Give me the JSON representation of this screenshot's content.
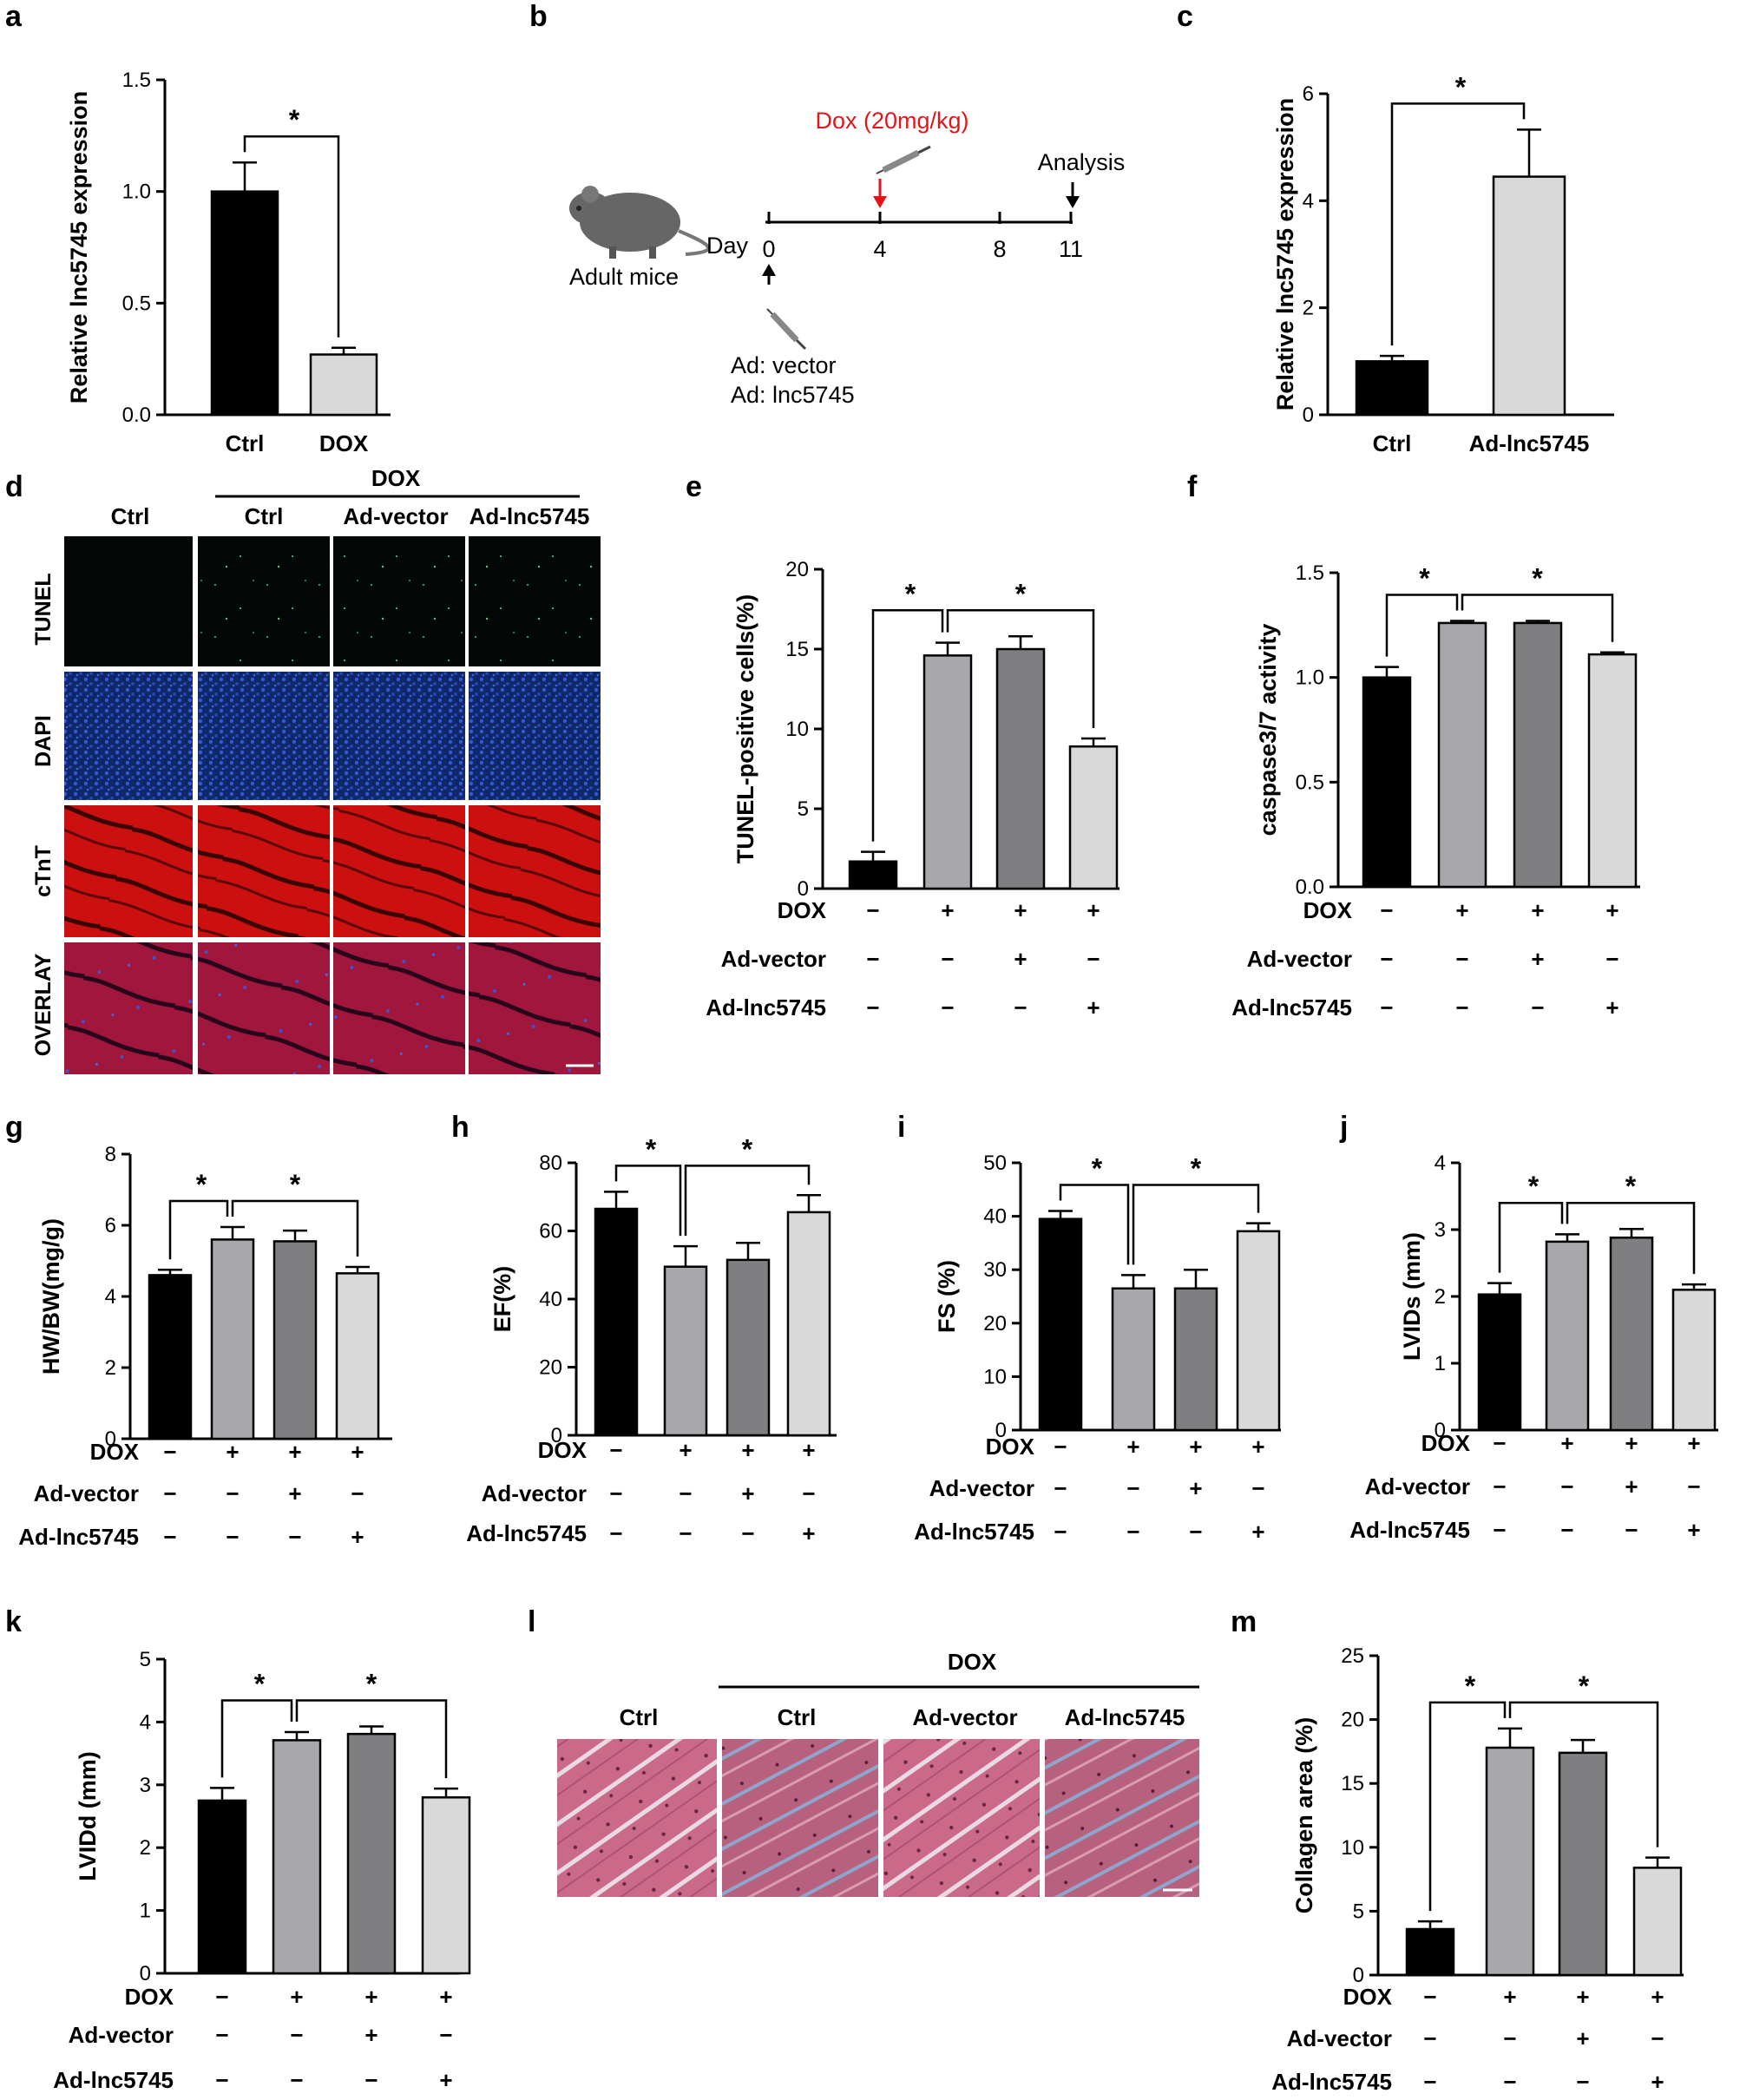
{
  "colors": {
    "black": "#000000",
    "dox": "#a8a8ac",
    "vector": "#7f7f81",
    "lnc": "#d9d9d9",
    "red": "#e0161b",
    "tunel": "#030806",
    "dapi": "#1d3e9c",
    "ctnt": "#cc1010",
    "overlay": "#9a1a3a",
    "masson": "#c86a86"
  },
  "panels": {
    "a": {
      "label": "a"
    },
    "b": {
      "label": "b"
    },
    "c": {
      "label": "c"
    },
    "d": {
      "label": "d"
    },
    "e": {
      "label": "e"
    },
    "f": {
      "label": "f"
    },
    "g": {
      "label": "g"
    },
    "h": {
      "label": "h"
    },
    "i": {
      "label": "i"
    },
    "j": {
      "label": "j"
    },
    "k": {
      "label": "k"
    },
    "l": {
      "label": "l"
    },
    "m": {
      "label": "m"
    }
  },
  "timeline": {
    "dox_label": "Dox (20mg/kg)",
    "analysis_label": "Analysis",
    "day_label": "Day",
    "ticks": [
      "0",
      "4",
      "8",
      "11"
    ],
    "mice_label": "Adult mice",
    "ad_vector": "Ad: vector",
    "ad_lnc": "Ad: lnc5745"
  },
  "micrographs_d": {
    "dox_header": "DOX",
    "columns": [
      "Ctrl",
      "Ctrl",
      "Ad-vector",
      "Ad-lnc5745"
    ],
    "rows": [
      "TUNEL",
      "DAPI",
      "cTnT",
      "OVERLAY"
    ]
  },
  "micrographs_l": {
    "dox_header": "DOX",
    "columns": [
      "Ctrl",
      "Ctrl",
      "Ad-vector",
      "Ad-lnc5745"
    ]
  },
  "treatment_labels": {
    "dox": "DOX",
    "vector": "Ad-vector",
    "lnc": "Ad-lnc5745",
    "plus": "+",
    "minus": "−"
  },
  "chart_data": [
    {
      "panel": "a",
      "type": "bar",
      "categories": [
        "Ctrl",
        "DOX"
      ],
      "values": [
        1.0,
        0.27
      ],
      "errors": [
        0.13,
        0.03
      ],
      "ylabel": "Relative lnc5745 expression",
      "ylim": [
        0,
        1.5
      ],
      "yticks": [
        "0.0",
        "0.5",
        "1.0",
        "1.5"
      ],
      "significance": [
        {
          "from": 0,
          "to": 1,
          "label": "*"
        }
      ]
    },
    {
      "panel": "c",
      "type": "bar",
      "categories": [
        "Ctrl",
        "Ad-lnc5745"
      ],
      "values": [
        1.0,
        4.45
      ],
      "errors": [
        0.1,
        0.88
      ],
      "ylabel": "Relative lnc5745 expression",
      "ylim": [
        0,
        6
      ],
      "yticks": [
        "0",
        "2",
        "4",
        "6"
      ],
      "significance": [
        {
          "from": 0,
          "to": 1,
          "label": "*"
        }
      ]
    },
    {
      "panel": "e",
      "type": "bar",
      "values": [
        1.7,
        14.6,
        15.0,
        8.9
      ],
      "errors": [
        0.6,
        0.8,
        0.8,
        0.5
      ],
      "ylabel": "TUNEL-positive cells(%)",
      "ylim": [
        0,
        20
      ],
      "yticks": [
        "0",
        "5",
        "10",
        "15",
        "20"
      ],
      "treatments": {
        "dox": [
          "−",
          "+",
          "+",
          "+"
        ],
        "vector": [
          "−",
          "−",
          "+",
          "−"
        ],
        "lnc": [
          "−",
          "−",
          "−",
          "+"
        ]
      },
      "significance": [
        {
          "from": 0,
          "to": 1,
          "label": "*"
        },
        {
          "from": 1,
          "to": 3,
          "label": "*"
        }
      ]
    },
    {
      "panel": "f",
      "type": "bar",
      "values": [
        1.0,
        1.26,
        1.26,
        1.11
      ],
      "errors": [
        0.05,
        0.01,
        0.01,
        0.01
      ],
      "ylabel": "caspase3/7 activity",
      "ylim": [
        0,
        1.5
      ],
      "yticks": [
        "0.0",
        "0.5",
        "1.0",
        "1.5"
      ],
      "treatments": {
        "dox": [
          "−",
          "+",
          "+",
          "+"
        ],
        "vector": [
          "−",
          "−",
          "+",
          "−"
        ],
        "lnc": [
          "−",
          "−",
          "−",
          "+"
        ]
      },
      "significance": [
        {
          "from": 0,
          "to": 1,
          "label": "*"
        },
        {
          "from": 1,
          "to": 3,
          "label": "*"
        }
      ]
    },
    {
      "panel": "g",
      "type": "bar",
      "values": [
        4.6,
        5.6,
        5.55,
        4.65
      ],
      "errors": [
        0.15,
        0.35,
        0.3,
        0.18
      ],
      "ylabel": "HW/BW(mg/g)",
      "ylim": [
        0,
        8
      ],
      "yticks": [
        "0",
        "2",
        "4",
        "6",
        "8"
      ],
      "treatments": {
        "dox": [
          "−",
          "+",
          "+",
          "+"
        ],
        "vector": [
          "−",
          "−",
          "+",
          "−"
        ],
        "lnc": [
          "−",
          "−",
          "−",
          "+"
        ]
      },
      "significance": [
        {
          "from": 0,
          "to": 1,
          "label": "*"
        },
        {
          "from": 1,
          "to": 3,
          "label": "*"
        }
      ]
    },
    {
      "panel": "h",
      "type": "bar",
      "values": [
        66.5,
        49.5,
        51.5,
        65.5
      ],
      "errors": [
        5.0,
        6.0,
        5.0,
        5.0
      ],
      "ylabel": "EF(%)",
      "ylim": [
        0,
        80
      ],
      "yticks": [
        "0",
        "20",
        "40",
        "60",
        "80"
      ],
      "treatments": {
        "dox": [
          "−",
          "+",
          "+",
          "+"
        ],
        "vector": [
          "−",
          "−",
          "+",
          "−"
        ],
        "lnc": [
          "−",
          "−",
          "−",
          "+"
        ]
      },
      "significance": [
        {
          "from": 0,
          "to": 1,
          "label": "*"
        },
        {
          "from": 1,
          "to": 3,
          "label": "*"
        }
      ]
    },
    {
      "panel": "i",
      "type": "bar",
      "values": [
        39.5,
        26.5,
        26.5,
        37.2
      ],
      "errors": [
        1.5,
        2.5,
        3.5,
        1.5
      ],
      "ylabel": "FS (%)",
      "ylim": [
        0,
        50
      ],
      "yticks": [
        "0",
        "10",
        "20",
        "30",
        "40",
        "50"
      ],
      "treatments": {
        "dox": [
          "−",
          "+",
          "+",
          "+"
        ],
        "vector": [
          "−",
          "−",
          "+",
          "−"
        ],
        "lnc": [
          "−",
          "−",
          "−",
          "+"
        ]
      },
      "significance": [
        {
          "from": 0,
          "to": 1,
          "label": "*"
        },
        {
          "from": 1,
          "to": 3,
          "label": "*"
        }
      ]
    },
    {
      "panel": "j",
      "type": "bar",
      "values": [
        2.03,
        2.82,
        2.88,
        2.1
      ],
      "errors": [
        0.17,
        0.11,
        0.13,
        0.08
      ],
      "ylabel": "LVIDs (mm)",
      "ylim": [
        0,
        4
      ],
      "yticks": [
        "0",
        "1",
        "2",
        "3",
        "4"
      ],
      "treatments": {
        "dox": [
          "−",
          "+",
          "+",
          "+"
        ],
        "vector": [
          "−",
          "−",
          "+",
          "−"
        ],
        "lnc": [
          "−",
          "−",
          "−",
          "+"
        ]
      },
      "significance": [
        {
          "from": 0,
          "to": 1,
          "label": "*"
        },
        {
          "from": 1,
          "to": 3,
          "label": "*"
        }
      ]
    },
    {
      "panel": "k",
      "type": "bar",
      "values": [
        2.75,
        3.71,
        3.81,
        2.8
      ],
      "errors": [
        0.2,
        0.13,
        0.12,
        0.14
      ],
      "ylabel": "LVIDd (mm)",
      "ylim": [
        0,
        5
      ],
      "yticks": [
        "0",
        "1",
        "2",
        "3",
        "4",
        "5"
      ],
      "treatments": {
        "dox": [
          "−",
          "+",
          "+",
          "+"
        ],
        "vector": [
          "−",
          "−",
          "+",
          "−"
        ],
        "lnc": [
          "−",
          "−",
          "−",
          "+"
        ]
      },
      "significance": [
        {
          "from": 0,
          "to": 1,
          "label": "*"
        },
        {
          "from": 1,
          "to": 3,
          "label": "*"
        }
      ]
    },
    {
      "panel": "m",
      "type": "bar",
      "values": [
        3.6,
        17.8,
        17.4,
        8.4
      ],
      "errors": [
        0.6,
        1.5,
        1.0,
        0.8
      ],
      "ylabel": "Collagen area (%)",
      "ylim": [
        0,
        25
      ],
      "yticks": [
        "0",
        "5",
        "10",
        "15",
        "20",
        "25"
      ],
      "treatments": {
        "dox": [
          "−",
          "+",
          "+",
          "+"
        ],
        "vector": [
          "−",
          "−",
          "+",
          "−"
        ],
        "lnc": [
          "−",
          "−",
          "−",
          "+"
        ]
      },
      "significance": [
        {
          "from": 0,
          "to": 1,
          "label": "*"
        },
        {
          "from": 1,
          "to": 3,
          "label": "*"
        }
      ]
    }
  ]
}
